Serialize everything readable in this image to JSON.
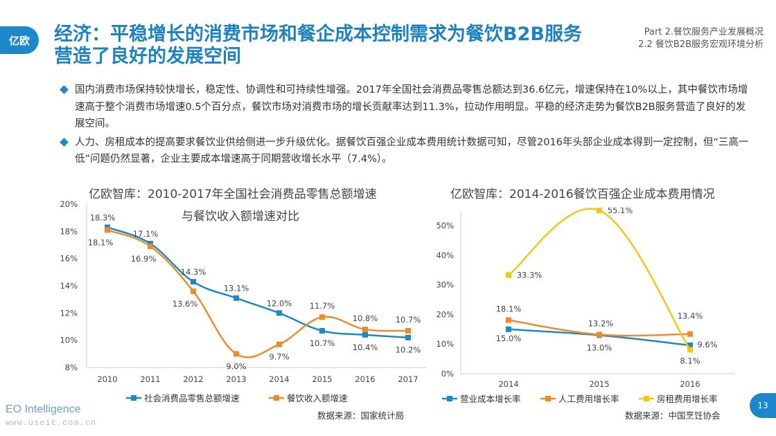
{
  "logo": {
    "text": "亿欧"
  },
  "title": "经济：平稳增长的消费市场和餐企成本控制需求为餐饮B2B服务营造了良好的发展空间",
  "part": {
    "line1": "Part 2.餐饮服务产业发展概况",
    "line2": "2.2 餐饮B2B服务宏观环境分析"
  },
  "bullets": [
    "国内消费市场保持较快增长，稳定性、协调性和可持续性增强。2017年全国社会消费品零售总额达到36.6亿元，增速保持在10%以上，其中餐饮市场增速高于整个消费市场增速0.5个百分点，餐饮市场对消费市场的增长贡献率达到11.3%，拉动作用明显。平稳的经济走势为餐饮B2B服务营造了良好的发展空间。",
    "人力、房租成本的提高要求餐饮业供给侧进一步升级优化。据餐饮百强企业成本费用统计数据可知，尽管2016年头部企业成本得到一定控制，但“三高一低”问题仍然显著，企业主要成本增速高于同期营收增长水平（7.4%）。"
  ],
  "chart_data": [
    {
      "type": "line",
      "title": "亿欧智库：2010-2017年全国社会消费品零售总额增速与餐饮收入额增速对比",
      "title_line1": "亿欧智库：2010-2017年全国社会消费品零售总额增速",
      "title_line2": "与餐饮收入额增速对比",
      "categories": [
        "2010",
        "2011",
        "2012",
        "2013",
        "2014",
        "2015",
        "2016",
        "2017"
      ],
      "series": [
        {
          "name": "社会消费品零售总额增速",
          "color": "#1c87c9",
          "values": [
            18.3,
            17.1,
            14.3,
            13.1,
            12.0,
            10.7,
            10.4,
            10.2
          ]
        },
        {
          "name": "餐饮收入额增速",
          "color": "#ef8a2c",
          "values": [
            18.1,
            16.9,
            13.6,
            9.0,
            9.7,
            11.7,
            10.8,
            10.7
          ]
        }
      ],
      "ylim": [
        8,
        20
      ],
      "yticks": [
        "8%",
        "10%",
        "12%",
        "14%",
        "16%",
        "18%",
        "20%"
      ],
      "grid": false,
      "legend": "bottom",
      "source": "数据来源：国家统计局"
    },
    {
      "type": "line",
      "title": "亿欧智库：2014-2016餐饮百强企业成本费用情况",
      "categories": [
        "2014",
        "2015",
        "2016"
      ],
      "series": [
        {
          "name": "营业成本增长率",
          "color": "#1c87c9",
          "values": [
            15.0,
            13.0,
            9.6
          ]
        },
        {
          "name": "人工费用增长率",
          "color": "#ef8a2c",
          "values": [
            18.1,
            13.2,
            13.4
          ]
        },
        {
          "name": "房租费用增长率",
          "color": "#f5c518",
          "values": [
            33.3,
            55.1,
            8.1
          ]
        }
      ],
      "ylim": [
        0,
        55
      ],
      "yticks": [
        "0%",
        "10%",
        "20%",
        "30%",
        "40%",
        "50%"
      ],
      "grid": false,
      "legend": "bottom",
      "source": "数据来源：中国烹饪协会"
    }
  ],
  "footer": {
    "brand": "EO Intelligence",
    "url": "www.useit.com.cn",
    "page": "13"
  }
}
